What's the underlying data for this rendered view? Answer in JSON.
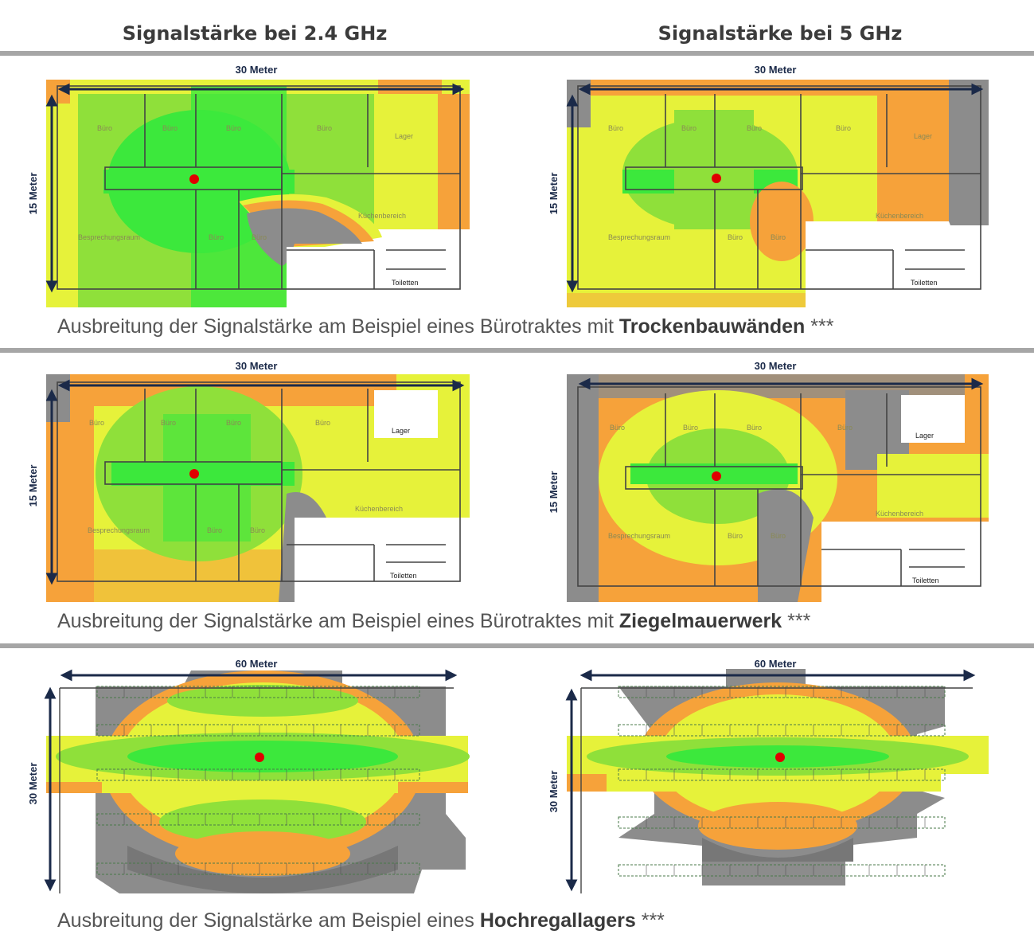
{
  "headers": {
    "col1": "Signalstärke bei 2.4 GHz",
    "col2": "Signalstärke bei 5 GHz"
  },
  "rows": [
    {
      "caption_prefix": "Ausbreitung der Signalstärke am Beispiel eines Bürotraktes mit ",
      "caption_bold": "Trockenbauwänden",
      "caption_suffix": " ***",
      "width_label": "30 Meter",
      "height_label": "15 Meter"
    },
    {
      "caption_prefix": "Ausbreitung der Signalstärke am Beispiel eines Bürotraktes mit ",
      "caption_bold": "Ziegelmauerwerk",
      "caption_suffix": " ***",
      "width_label": "30 Meter",
      "height_label": "15 Meter"
    },
    {
      "caption_prefix": "Ausbreitung der Signalstärke am Beispiel eines ",
      "caption_bold": "Hochregallagers",
      "caption_suffix": " ***",
      "width_label": "60 Meter",
      "height_label": "30 Meter"
    }
  ],
  "rooms": {
    "buero": "Büro",
    "lager": "Lager",
    "besprechung": "Besprechungsraum",
    "kueche": "Küchenbereich",
    "toiletten": "Toiletten"
  },
  "colors": {
    "strong": "#3ce83c",
    "good": "#8fe03a",
    "medium": "#e6f23a",
    "weak": "#f6a23a",
    "none": "#8c8c8c",
    "access_point": "#e00000",
    "dimension_line": "#1b2a49"
  }
}
